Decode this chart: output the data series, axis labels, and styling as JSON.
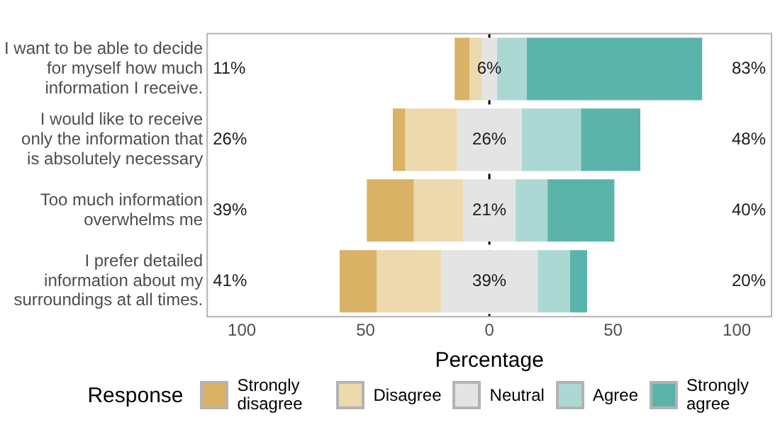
{
  "chart_data": {
    "type": "bar",
    "orientation": "horizontal",
    "xlabel": "Percentage",
    "legend_title": "Response",
    "legend": "bottom",
    "grid": false,
    "categories": [
      "I want to be able to decide for myself how much information I receive.",
      "I would like to receive only the information that is absolutely necessary",
      "Too much information overwhelms me",
      "I prefer detailed information about my surroundings at all times."
    ],
    "series": [
      {
        "name": "Strongly disagree",
        "color": "#d9b265",
        "values": [
          6,
          5,
          19,
          15
        ],
        "base": [
          -14,
          -39,
          -49.5,
          -60.5
        ]
      },
      {
        "name": "Disagree",
        "color": "#ecd9ae",
        "values": [
          5,
          21,
          20,
          26
        ],
        "base": [
          -8,
          -34,
          -30.5,
          -45.5
        ]
      },
      {
        "name": "Neutral",
        "color": "#e4e4e4",
        "values": [
          6,
          26,
          21,
          39
        ],
        "base": [
          -3,
          -13,
          -10.5,
          -19.5
        ]
      },
      {
        "name": "Agree",
        "color": "#acd8d4",
        "values": [
          12,
          24,
          13,
          13
        ],
        "base": [
          3,
          13,
          10.5,
          19.5
        ]
      },
      {
        "name": "Strongly agree",
        "color": "#5ab4aa",
        "values": [
          71,
          24,
          27,
          7
        ],
        "base": [
          15,
          37,
          23.5,
          32.5
        ]
      }
    ],
    "xlim": [
      -114,
      114
    ],
    "xticks": [
      {
        "value": -100,
        "label": "100"
      },
      {
        "value": -50,
        "label": "50"
      },
      0,
      50,
      100
    ],
    "ref_lines": [
      {
        "axis": "x",
        "value": 0,
        "color": "#000000",
        "line_style": "dashed"
      }
    ],
    "annotations": [
      "11%",
      "6%",
      "83%",
      "26%",
      "26%",
      "48%",
      "39%",
      "21%",
      "40%",
      "41%",
      "39%",
      "20%"
    ]
  }
}
